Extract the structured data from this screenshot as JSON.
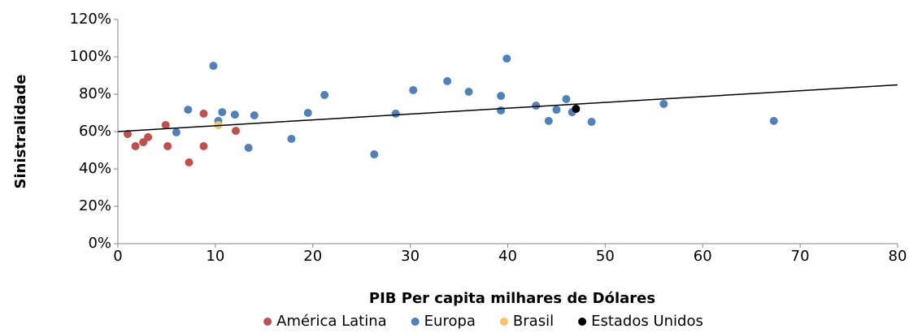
{
  "chart_data": {
    "type": "scatter",
    "xlabel": "PIB Per capita milhares de Dólares",
    "ylabel": "Sinistralidade",
    "xlim": [
      0,
      80
    ],
    "xticks": [
      0,
      10,
      20,
      30,
      40,
      50,
      60,
      70,
      80
    ],
    "ylim": [
      0,
      120
    ],
    "yticks": [
      {
        "value": 0,
        "label": "0%"
      },
      {
        "value": 20,
        "label": "20%"
      },
      {
        "value": 40,
        "label": "40%"
      },
      {
        "value": 60,
        "label": "60%"
      },
      {
        "value": 80,
        "label": "80%"
      },
      {
        "value": 100,
        "label": "100%"
      },
      {
        "value": 120,
        "label": "120%"
      }
    ],
    "legend": "bottom",
    "series": [
      {
        "name": "América Latina",
        "color": "#c0504d",
        "x": [
          1.0,
          1.8,
          2.6,
          3.1,
          4.9,
          5.1,
          7.3,
          8.8,
          8.8,
          12.1
        ],
        "values": [
          58.7,
          52.2,
          54.3,
          57,
          63.5,
          52.2,
          43.5,
          69.6,
          52.2,
          60.4
        ]
      },
      {
        "name": "Europa",
        "color": "#4f81bd",
        "x": [
          6.0,
          7.2,
          9.8,
          10.3,
          10.7,
          12.0,
          13.4,
          14.0,
          17.8,
          19.5,
          21.2,
          26.3,
          28.5,
          30.3,
          33.8,
          36.0,
          39.3,
          39.3,
          39.9,
          42.9,
          44.2,
          45.0,
          46.0,
          46.6,
          48.6,
          56.0,
          67.3
        ],
        "values": [
          59.6,
          71.7,
          95.2,
          65.7,
          70.4,
          69.1,
          51.3,
          68.7,
          56.1,
          70,
          79.6,
          47.8,
          69.6,
          82.2,
          87,
          81.3,
          79.1,
          71.3,
          99.1,
          73.9,
          65.7,
          71.7,
          77.4,
          70.4,
          65.2,
          74.8,
          65.7
        ]
      },
      {
        "name": "Brasil",
        "color": "#f9c35b",
        "x": [
          10.3
        ],
        "values": [
          63.5
        ]
      },
      {
        "name": "Estados Unidos",
        "color": "#000000",
        "x": [
          47.0
        ],
        "values": [
          72.2
        ]
      }
    ],
    "trendline": {
      "color": "#000000",
      "x": [
        0,
        80
      ],
      "values": [
        60,
        85
      ]
    }
  }
}
